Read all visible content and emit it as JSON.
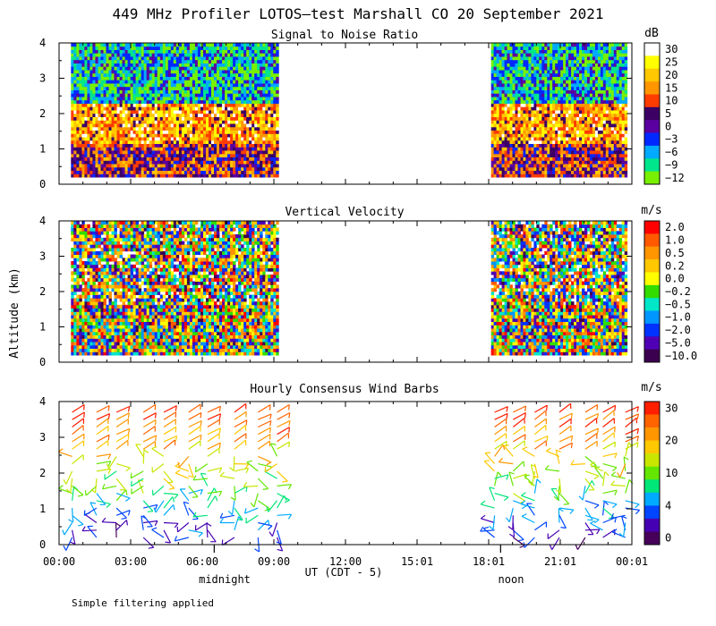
{
  "title": "449 MHz Profiler LOTOS—test Marshall CO 20 September 2021",
  "ylabel": "Altitude (km)",
  "xlabel": "UT  (CDT - 5)",
  "footnote": "Simple filtering applied",
  "x_ticks": [
    "00:00",
    "03:00",
    "06:00",
    "09:00",
    "12:00",
    "15:01",
    "18:01",
    "21:01",
    "00:01"
  ],
  "day_markers": [
    {
      "label": "midnight",
      "hour": 6.5
    },
    {
      "label": "noon",
      "hour": 18.5
    }
  ],
  "chart_data": [
    {
      "type": "heatmap",
      "title": "Signal to Noise Ratio",
      "units": "dB",
      "x_range_hours": [
        0,
        24
      ],
      "ylim": [
        0,
        4
      ],
      "y_ticks": [
        "0",
        "1",
        "2",
        "3",
        "4"
      ],
      "data_segments_hours": [
        [
          0.5,
          9.2
        ],
        [
          18.1,
          23.8
        ]
      ],
      "altitude_range_km": [
        0.2,
        4.0
      ],
      "colorbar_labels": [
        "30",
        "25",
        "20",
        "15",
        "10",
        "5",
        "0",
        "−3",
        "−6",
        "−9",
        "−12"
      ],
      "colorbar_colors": [
        "#ffffff",
        "#ffff00",
        "#ffc800",
        "#ff9600",
        "#ff3c00",
        "#3c0064",
        "#5a00a0",
        "#0028ff",
        "#00aaff",
        "#00e68c",
        "#78f000"
      ]
    },
    {
      "type": "heatmap",
      "title": "Vertical Velocity",
      "units": "m/s",
      "x_range_hours": [
        0,
        24
      ],
      "ylim": [
        0,
        4
      ],
      "y_ticks": [
        "0",
        "1",
        "2",
        "3",
        "4"
      ],
      "data_segments_hours": [
        [
          0.5,
          9.2
        ],
        [
          18.1,
          23.8
        ]
      ],
      "altitude_range_km": [
        0.2,
        4.0
      ],
      "colorbar_labels": [
        "2.0",
        "1.0",
        "0.5",
        "0.2",
        "0.0",
        "−0.2",
        "−0.5",
        "−1.0",
        "−2.0",
        "−5.0",
        "−10.0"
      ],
      "colorbar_colors": [
        "#ff0000",
        "#ff5a00",
        "#ff9600",
        "#ffc800",
        "#ffff00",
        "#32dc00",
        "#00e6c8",
        "#0096ff",
        "#0032ff",
        "#5000b4",
        "#3c0050"
      ]
    },
    {
      "type": "wind_barbs",
      "title": "Hourly Consensus Wind Barbs",
      "units": "m/s",
      "x_range_hours": [
        0,
        24
      ],
      "ylim": [
        0,
        4
      ],
      "y_ticks": [
        "0",
        "1",
        "2",
        "3",
        "4"
      ],
      "data_segments_hours": [
        [
          0.5,
          9.2
        ],
        [
          18.1,
          23.8
        ]
      ],
      "altitude_range_km": [
        0.2,
        3.7
      ],
      "colorbar_labels": [
        "30",
        "20",
        "10",
        "4",
        "0"
      ],
      "colorbar_colors": [
        "#ff1e00",
        "#ff6400",
        "#ff9600",
        "#ffc800",
        "#c8e600",
        "#64e600",
        "#00e678",
        "#00aaff",
        "#0046ff",
        "#4600b4",
        "#46005a"
      ]
    }
  ]
}
